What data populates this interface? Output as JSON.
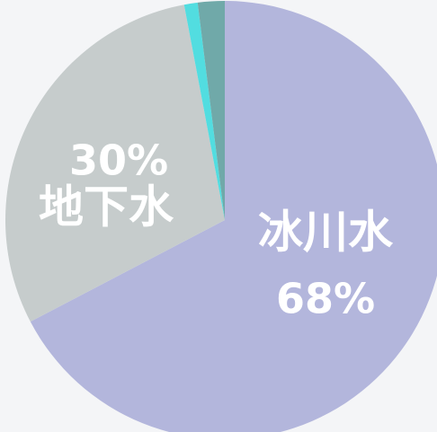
{
  "chart_data": {
    "type": "pie",
    "categories": [
      "冰川水",
      "地下水",
      null,
      null
    ],
    "values": [
      68,
      30,
      1,
      2
    ],
    "value_labels": [
      "68%",
      "30%",
      null,
      null
    ],
    "colors": [
      "#b3b6dc",
      "#c6cccc",
      "#52dde0",
      "#70a9a9"
    ]
  }
}
